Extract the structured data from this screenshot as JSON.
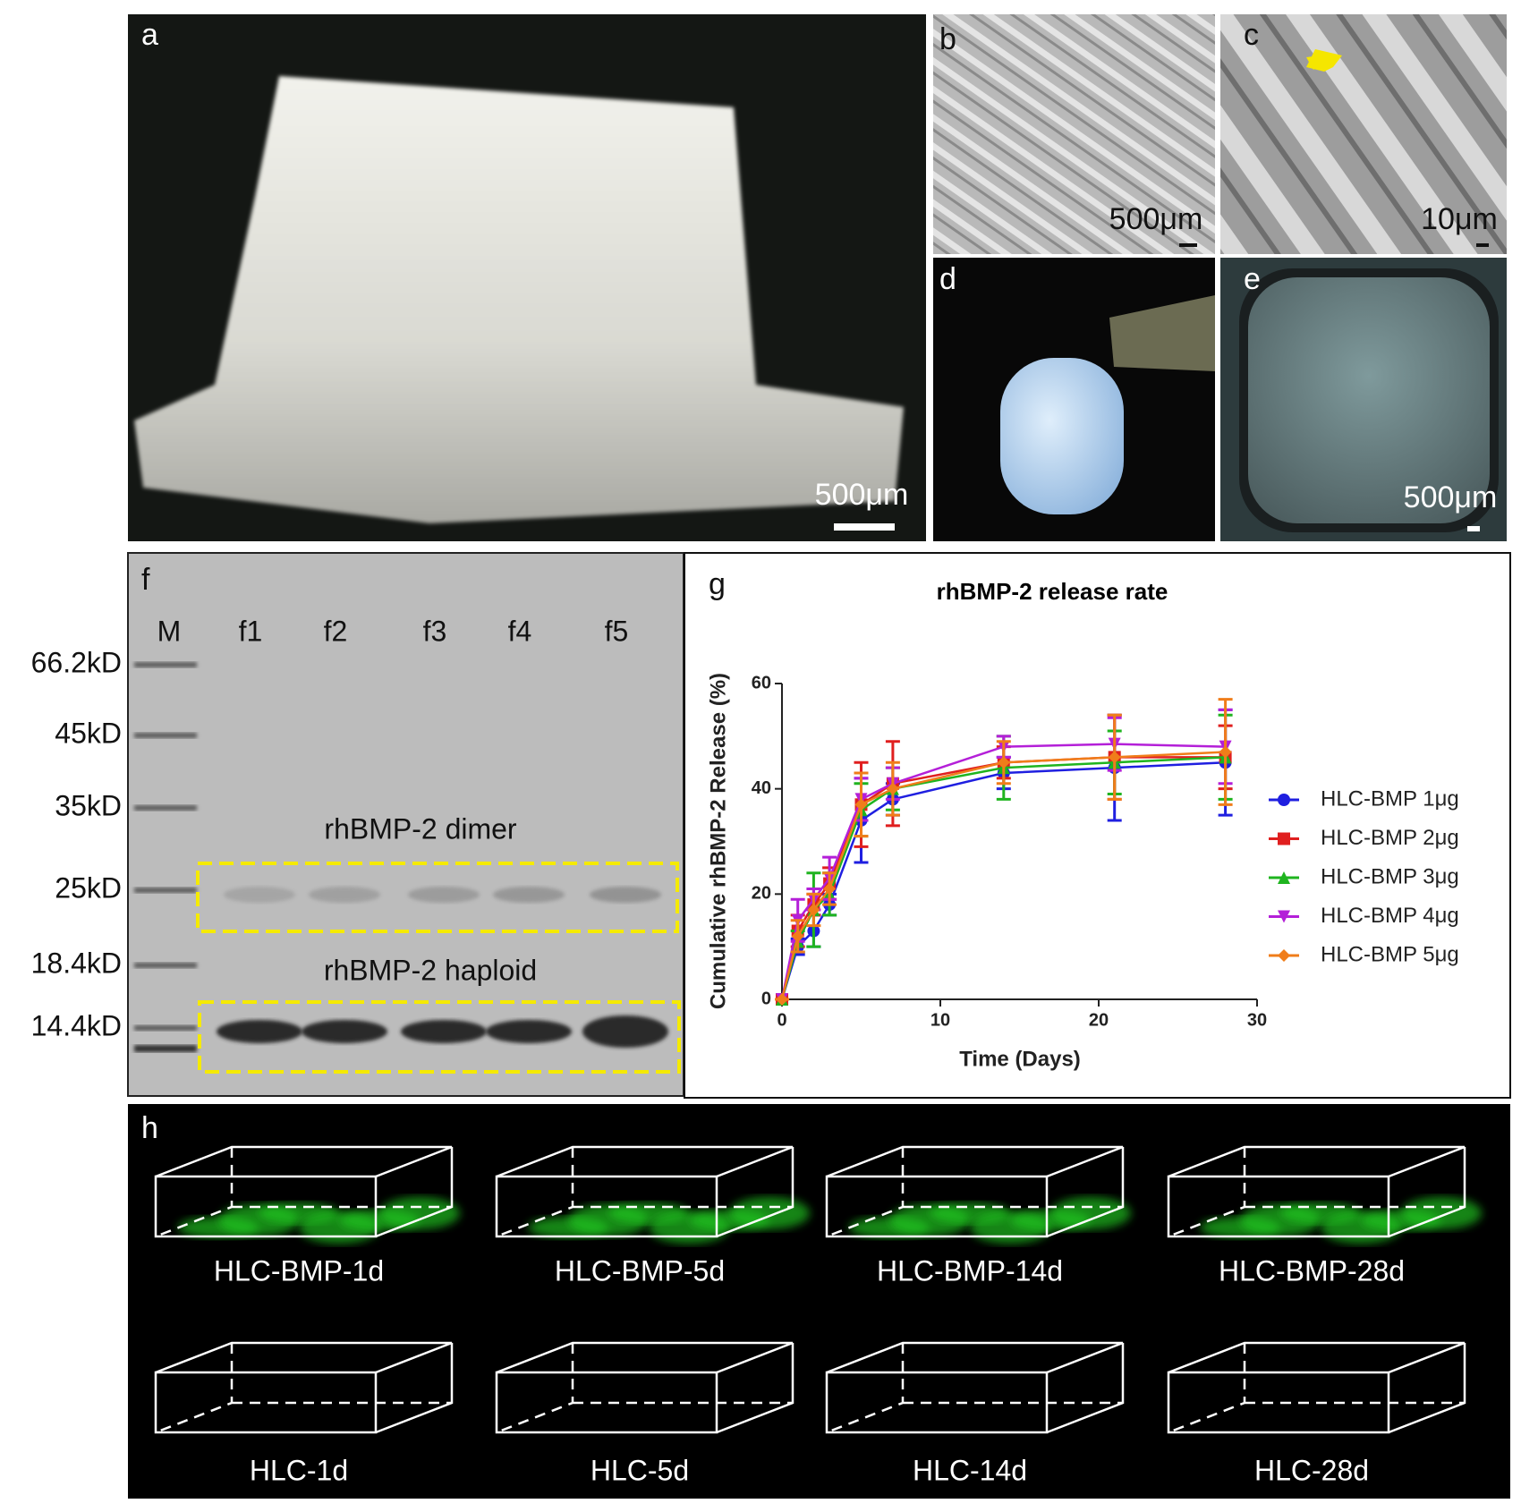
{
  "panels": {
    "a": {
      "label": "a",
      "scale": "500μm"
    },
    "b": {
      "label": "b",
      "scale": "500μm"
    },
    "c": {
      "label": "c",
      "scale": "10μm"
    },
    "d": {
      "label": "d"
    },
    "e": {
      "label": "e",
      "scale": "500μm"
    }
  },
  "gel": {
    "label": "f",
    "lanes": [
      "M",
      "f1",
      "f2",
      "f3",
      "f4",
      "f5"
    ],
    "markers": [
      "66.2kD",
      "45kD",
      "35kD",
      "25kD",
      "18.4kD",
      "14.4kD"
    ],
    "dimer": "rhBMP-2  dimer",
    "haploid": "rhBMP-2  haploid"
  },
  "chart_data": {
    "type": "line",
    "panel_label": "g",
    "title": "rhBMP-2 release rate",
    "x_label": "Time (Days)",
    "y_label": "Cumulative rhBMP-2 Release (%)",
    "x": [
      0,
      1,
      2,
      3,
      5,
      7,
      14,
      21,
      28
    ],
    "series": [
      {
        "name": "HLC-BMP 1μg",
        "color": "#1f1fe0",
        "marker": "circle",
        "values": [
          0,
          10,
          13,
          18,
          34,
          38,
          43,
          44,
          45
        ],
        "errors": [
          0,
          1.5,
          3,
          2,
          8,
          3,
          3,
          10,
          10
        ]
      },
      {
        "name": "HLC-BMP 2μg",
        "color": "#e01f1f",
        "marker": "square",
        "values": [
          0,
          13,
          18,
          22,
          37,
          41,
          45,
          46,
          46
        ],
        "errors": [
          0,
          3,
          2,
          3,
          8,
          8,
          3,
          8,
          6
        ]
      },
      {
        "name": "HLC-BMP 3μg",
        "color": "#1fb41f",
        "marker": "triangle-up",
        "values": [
          0,
          11,
          17,
          20,
          36,
          40,
          44,
          45,
          46
        ],
        "errors": [
          0,
          2,
          7,
          4,
          5,
          4,
          6,
          6,
          8
        ]
      },
      {
        "name": "HLC-BMP 4μg",
        "color": "#b41fd8",
        "marker": "triangle-down",
        "values": [
          0,
          15,
          19,
          23,
          38,
          41,
          48,
          48.5,
          48
        ],
        "errors": [
          0,
          4,
          2,
          4,
          4,
          3,
          2,
          5,
          7
        ]
      },
      {
        "name": "HLC-BMP 5μg",
        "color": "#f07d1a",
        "marker": "diamond",
        "values": [
          0,
          12,
          17,
          21,
          37,
          40,
          45,
          46,
          47
        ],
        "errors": [
          0,
          3,
          3,
          3,
          6,
          5,
          4,
          8,
          10
        ]
      }
    ],
    "xlim": [
      0,
      30
    ],
    "xticks": [
      0,
      10,
      20,
      30
    ],
    "ylim": [
      0,
      60
    ],
    "yticks": [
      0,
      20,
      40,
      60
    ]
  },
  "confocal": {
    "label": "h",
    "rows": [
      [
        "HLC-BMP-1d",
        "HLC-BMP-5d",
        "HLC-BMP-14d",
        "HLC-BMP-28d"
      ],
      [
        "HLC-1d",
        "HLC-5d",
        "HLC-14d",
        "HLC-28d"
      ]
    ]
  }
}
